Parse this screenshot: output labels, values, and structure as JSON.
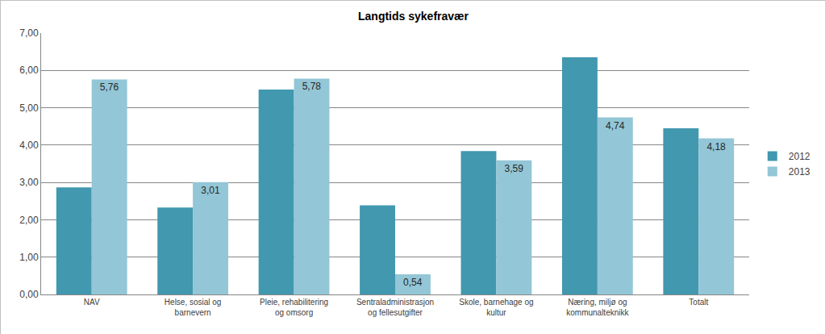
{
  "chart_data": {
    "type": "bar",
    "title": "Langtids sykefravær",
    "categories": [
      "NAV",
      "Helse, sosial og barnevern",
      "Pleie, rehabilitering og omsorg",
      "Sentraladministrasjon og fellesutgifter",
      "Skole, barnehage og kultur",
      "Næring, miljø og kommunalteknikk",
      "Totalt"
    ],
    "series": [
      {
        "name": "2012",
        "color": "#4198af",
        "values": [
          2.87,
          2.33,
          5.49,
          2.39,
          3.84,
          6.35,
          4.45
        ]
      },
      {
        "name": "2013",
        "color": "#93c6d6",
        "values": [
          5.76,
          3.01,
          5.78,
          0.54,
          3.59,
          4.74,
          4.18
        ],
        "data_labels": true,
        "value_labels": [
          "5,76",
          "3,01",
          "5,78",
          "0,54",
          "3,59",
          "4,74",
          "4,18"
        ]
      }
    ],
    "ylim": [
      0,
      7
    ],
    "yticks": [
      {
        "value": 0,
        "label": "0,00"
      },
      {
        "value": 1,
        "label": "1,00"
      },
      {
        "value": 2,
        "label": "2,00"
      },
      {
        "value": 3,
        "label": "3,00"
      },
      {
        "value": 4,
        "label": "4,00"
      },
      {
        "value": 5,
        "label": "5,00"
      },
      {
        "value": 6,
        "label": "6,00"
      },
      {
        "value": 7,
        "label": "7,00"
      }
    ],
    "grid": true,
    "legend": "right"
  }
}
